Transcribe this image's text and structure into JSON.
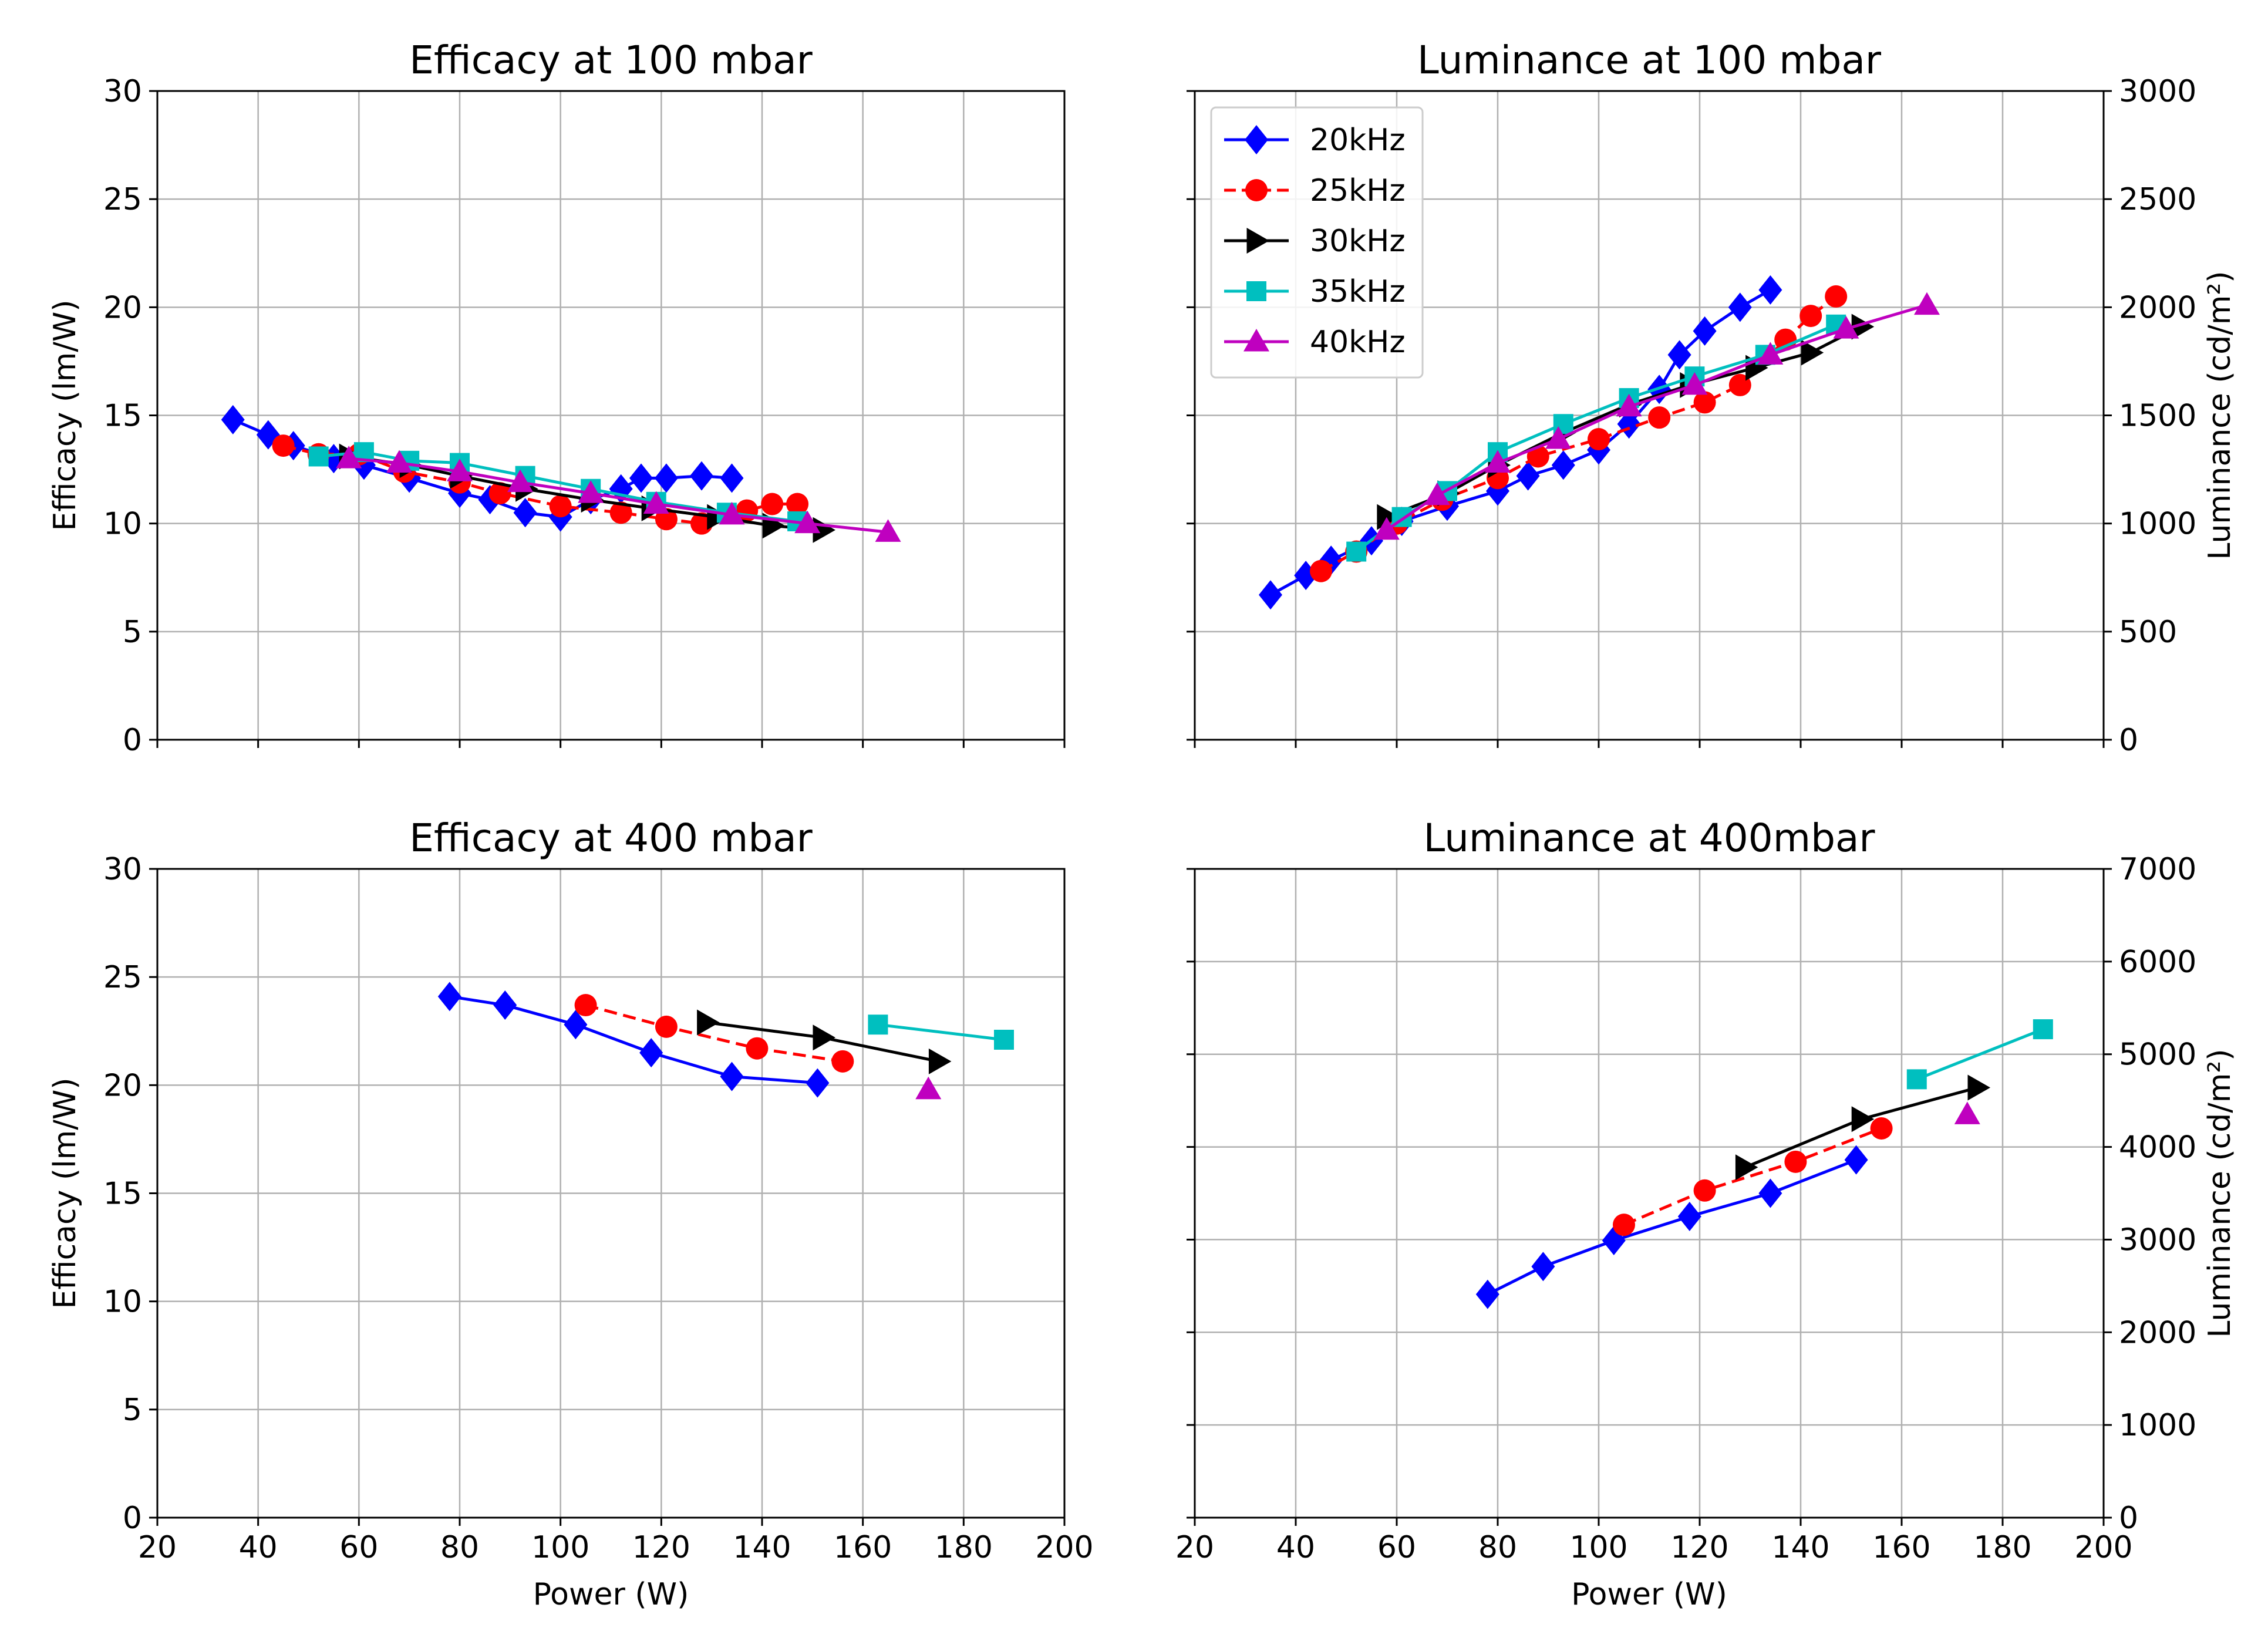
{
  "chart_data": [
    {
      "type": "line",
      "title": "Efficacy at 100 mbar",
      "xlabel": "",
      "ylabel": "Efficacy  (lm/W)",
      "xlim": [
        20,
        200
      ],
      "ylim": [
        0,
        30
      ],
      "xticks": [
        20,
        40,
        60,
        80,
        100,
        120,
        140,
        160,
        180,
        200
      ],
      "yticks": [
        0,
        5,
        10,
        15,
        20,
        25,
        30
      ],
      "show_xticklabels": false,
      "y_axis_side": "left",
      "grid": true,
      "series": [
        {
          "name": "20kHz",
          "color": "#0000ff",
          "marker": "diamond",
          "dash": "solid",
          "x": [
            35,
            42,
            47,
            55,
            61,
            70,
            80,
            86,
            93,
            100,
            106,
            112,
            116,
            121,
            128,
            134
          ],
          "y": [
            14.8,
            14.1,
            13.6,
            13.0,
            12.7,
            12.1,
            11.4,
            11.1,
            10.5,
            10.3,
            11.1,
            11.6,
            12.1,
            12.1,
            12.2,
            12.1
          ]
        },
        {
          "name": "25kHz",
          "color": "#ff0000",
          "marker": "circle",
          "dash": "dashed",
          "x": [
            45,
            52,
            60,
            69,
            80,
            88,
            100,
            112,
            121,
            128,
            137,
            142,
            147
          ],
          "y": [
            13.6,
            13.2,
            13.2,
            12.4,
            11.9,
            11.4,
            10.8,
            10.5,
            10.2,
            10.0,
            10.6,
            10.9,
            10.9
          ]
        },
        {
          "name": "30kHz",
          "color": "#000000",
          "marker": "triangle-right",
          "dash": "solid",
          "x": [
            58,
            70,
            80,
            93,
            106,
            118,
            131,
            142,
            152
          ],
          "y": [
            13.1,
            12.7,
            12.2,
            11.6,
            11.1,
            10.7,
            10.3,
            9.9,
            9.7
          ]
        },
        {
          "name": "35kHz",
          "color": "#00bfbf",
          "marker": "square",
          "dash": "solid",
          "x": [
            52,
            61,
            70,
            80,
            93,
            106,
            119,
            133,
            147
          ],
          "y": [
            13.1,
            13.3,
            12.9,
            12.8,
            12.2,
            11.6,
            11.0,
            10.5,
            10.1
          ]
        },
        {
          "name": "40kHz",
          "color": "#bf00bf",
          "marker": "triangle-up",
          "dash": "solid",
          "x": [
            58,
            68,
            80,
            92,
            106,
            119,
            134,
            149,
            165
          ],
          "y": [
            13.0,
            12.8,
            12.4,
            11.9,
            11.4,
            10.9,
            10.4,
            10.0,
            9.6
          ]
        }
      ]
    },
    {
      "type": "line",
      "title": "Luminance at 100 mbar",
      "xlabel": "",
      "ylabel": "Luminance (cd/m²)",
      "xlim": [
        20,
        200
      ],
      "ylim": [
        0,
        3000
      ],
      "xticks": [
        20,
        40,
        60,
        80,
        100,
        120,
        140,
        160,
        180,
        200
      ],
      "yticks": [
        0,
        500,
        1000,
        1500,
        2000,
        2500,
        3000
      ],
      "show_xticklabels": false,
      "y_axis_side": "right",
      "grid": true,
      "legend": "top-left",
      "series": [
        {
          "name": "20kHz",
          "color": "#0000ff",
          "marker": "diamond",
          "dash": "solid",
          "x": [
            35,
            42,
            47,
            55,
            61,
            70,
            80,
            86,
            93,
            100,
            106,
            112,
            116,
            121,
            128,
            134
          ],
          "y": [
            670,
            760,
            830,
            920,
            1010,
            1080,
            1150,
            1220,
            1270,
            1340,
            1460,
            1620,
            1780,
            1890,
            2000,
            2080
          ]
        },
        {
          "name": "25kHz",
          "color": "#ff0000",
          "marker": "circle",
          "dash": "dashed",
          "x": [
            45,
            52,
            60,
            69,
            80,
            88,
            100,
            112,
            121,
            128,
            137,
            142,
            147
          ],
          "y": [
            780,
            870,
            1000,
            1110,
            1210,
            1310,
            1390,
            1490,
            1560,
            1640,
            1850,
            1960,
            2050
          ]
        },
        {
          "name": "30kHz",
          "color": "#000000",
          "marker": "triangle-right",
          "dash": "solid",
          "x": [
            58,
            70,
            80,
            93,
            106,
            118,
            131,
            142,
            152
          ],
          "y": [
            1030,
            1140,
            1270,
            1420,
            1550,
            1640,
            1720,
            1790,
            1910
          ]
        },
        {
          "name": "35kHz",
          "color": "#00bfbf",
          "marker": "square",
          "dash": "solid",
          "x": [
            52,
            61,
            70,
            80,
            93,
            106,
            119,
            133,
            147
          ],
          "y": [
            870,
            1030,
            1150,
            1330,
            1460,
            1580,
            1680,
            1780,
            1920
          ]
        },
        {
          "name": "40kHz",
          "color": "#bf00bf",
          "marker": "triangle-up",
          "dash": "solid",
          "x": [
            58,
            68,
            80,
            92,
            106,
            119,
            134,
            149,
            165
          ],
          "y": [
            970,
            1130,
            1280,
            1390,
            1540,
            1640,
            1780,
            1900,
            2010
          ]
        }
      ]
    },
    {
      "type": "line",
      "title": "Efficacy at 400 mbar",
      "xlabel": "Power (W)",
      "ylabel": "Efficacy  (lm/W)",
      "xlim": [
        20,
        200
      ],
      "ylim": [
        0,
        30
      ],
      "xticks": [
        20,
        40,
        60,
        80,
        100,
        120,
        140,
        160,
        180,
        200
      ],
      "yticks": [
        0,
        5,
        10,
        15,
        20,
        25,
        30
      ],
      "show_xticklabels": true,
      "y_axis_side": "left",
      "grid": true,
      "series": [
        {
          "name": "20kHz",
          "color": "#0000ff",
          "marker": "diamond",
          "dash": "solid",
          "x": [
            78,
            89,
            103,
            118,
            134,
            151
          ],
          "y": [
            24.1,
            23.7,
            22.8,
            21.5,
            20.4,
            20.1
          ]
        },
        {
          "name": "25kHz",
          "color": "#ff0000",
          "marker": "circle",
          "dash": "dashed",
          "x": [
            105,
            121,
            139,
            156
          ],
          "y": [
            23.7,
            22.7,
            21.7,
            21.1
          ]
        },
        {
          "name": "30kHz",
          "color": "#000000",
          "marker": "triangle-right",
          "dash": "solid",
          "x": [
            129,
            152,
            175
          ],
          "y": [
            22.9,
            22.2,
            21.1
          ]
        },
        {
          "name": "35kHz",
          "color": "#00bfbf",
          "marker": "square",
          "dash": "solid",
          "x": [
            163,
            188
          ],
          "y": [
            22.8,
            22.1
          ]
        },
        {
          "name": "40kHz",
          "color": "#bf00bf",
          "marker": "triangle-up",
          "dash": "solid",
          "x": [
            173
          ],
          "y": [
            19.8
          ]
        }
      ]
    },
    {
      "type": "line",
      "title": "Luminance at 400mbar",
      "xlabel": "Power (W)",
      "ylabel": "Luminance (cd/m²)",
      "xlim": [
        20,
        200
      ],
      "ylim": [
        0,
        7000
      ],
      "xticks": [
        20,
        40,
        60,
        80,
        100,
        120,
        140,
        160,
        180,
        200
      ],
      "yticks": [
        0,
        1000,
        2000,
        3000,
        4000,
        5000,
        6000,
        7000
      ],
      "show_xticklabels": true,
      "y_axis_side": "right",
      "grid": true,
      "series": [
        {
          "name": "20kHz",
          "color": "#0000ff",
          "marker": "diamond",
          "dash": "solid",
          "x": [
            78,
            89,
            103,
            118,
            134,
            151
          ],
          "y": [
            2410,
            2710,
            2990,
            3250,
            3500,
            3860
          ]
        },
        {
          "name": "25kHz",
          "color": "#ff0000",
          "marker": "circle",
          "dash": "dashed",
          "x": [
            105,
            121,
            139,
            156
          ],
          "y": [
            3160,
            3530,
            3840,
            4200
          ]
        },
        {
          "name": "30kHz",
          "color": "#000000",
          "marker": "triangle-right",
          "dash": "solid",
          "x": [
            129,
            152,
            175
          ],
          "y": [
            3780,
            4300,
            4640
          ]
        },
        {
          "name": "35kHz",
          "color": "#00bfbf",
          "marker": "square",
          "dash": "solid",
          "x": [
            163,
            188
          ],
          "y": [
            4730,
            5270
          ]
        },
        {
          "name": "40kHz",
          "color": "#bf00bf",
          "marker": "triangle-up",
          "dash": "solid",
          "x": [
            173
          ],
          "y": [
            4350
          ]
        }
      ]
    }
  ]
}
